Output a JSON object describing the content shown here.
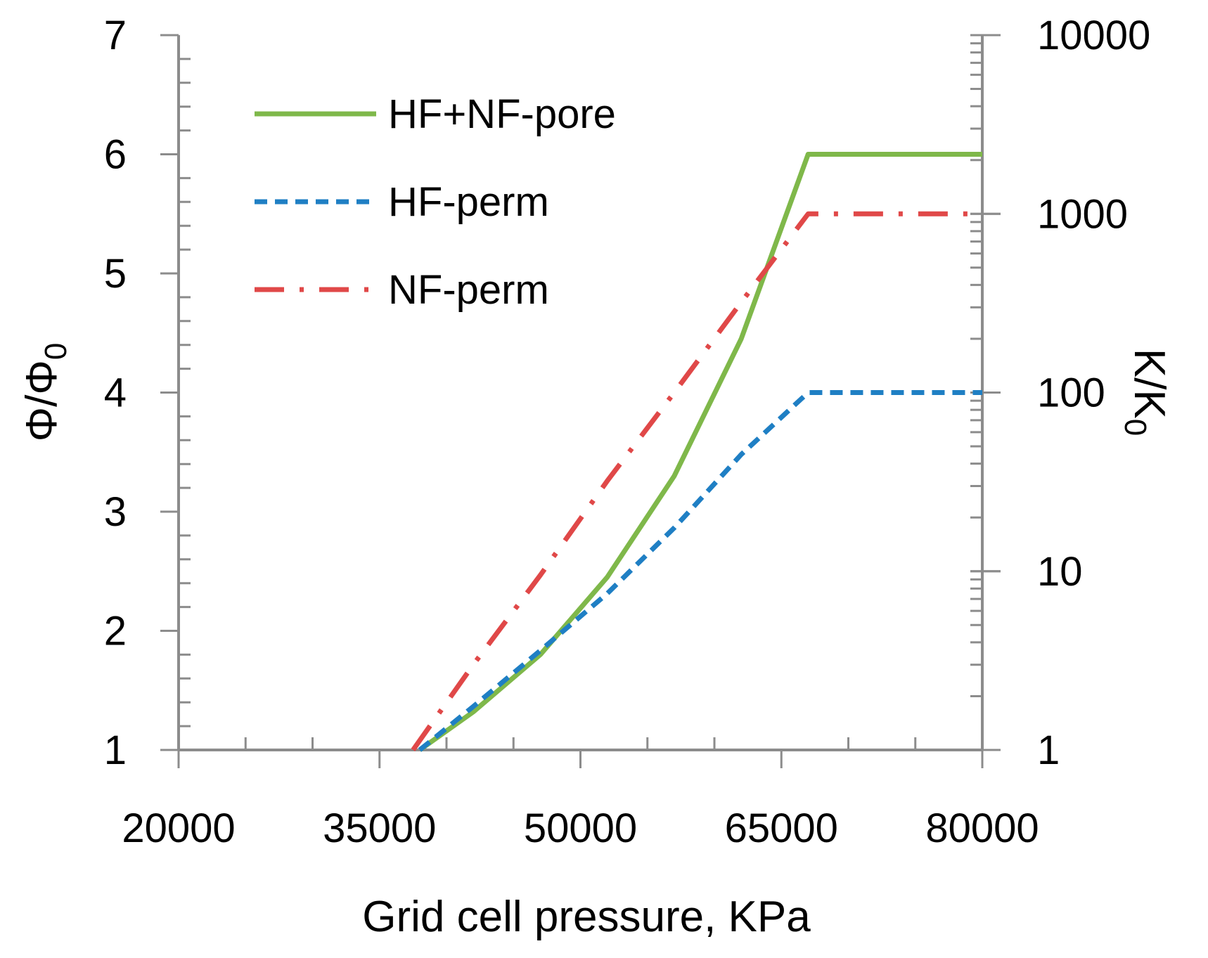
{
  "chart_data": {
    "type": "line",
    "x": [
      20000,
      37500,
      38500,
      42000,
      47000,
      52000,
      57000,
      62000,
      67000,
      70000,
      80000
    ],
    "xlabel": "Grid cell pressure, KPa",
    "xlim": [
      20000,
      80000
    ],
    "x_ticks": [
      "20000",
      "35000",
      "50000",
      "65000",
      "80000"
    ],
    "x_tick_values": [
      20000,
      35000,
      50000,
      65000,
      80000
    ],
    "ylabel_left": {
      "base": "Φ/Φ",
      "sub": "0"
    },
    "ylim_left": [
      1,
      7
    ],
    "y_ticks_left": [
      "1",
      "2",
      "3",
      "4",
      "5",
      "6",
      "7"
    ],
    "ylabel_right": {
      "base": "K/K",
      "sub": "0"
    },
    "ylim_right": [
      1,
      10000
    ],
    "y_scale_right": "log",
    "y_ticks_right": [
      "1",
      "10",
      "100",
      "1000",
      "10000"
    ],
    "legend_position": "top-left",
    "series": [
      {
        "name": "HF+NF-pore",
        "axis": "left",
        "color": "#7fb84a",
        "style": "solid",
        "x": [
          38000,
          42000,
          47000,
          52000,
          57000,
          62000,
          67000,
          80000
        ],
        "values": [
          1.0,
          1.32,
          1.8,
          2.45,
          3.3,
          4.45,
          6.0,
          6.0
        ]
      },
      {
        "name": "HF-perm",
        "axis": "right",
        "color": "#1f7fc4",
        "style": "dash",
        "x": [
          38000,
          42000,
          47000,
          52000,
          57000,
          62000,
          67000,
          80000
        ],
        "values": [
          1.0,
          1.75,
          3.6,
          7.5,
          17.5,
          45,
          100,
          100
        ]
      },
      {
        "name": "NF-perm",
        "axis": "right",
        "color": "#e04848",
        "style": "dashdot",
        "x": [
          37500,
          42000,
          47000,
          52000,
          57000,
          62000,
          67000,
          80000
        ],
        "values": [
          1.0,
          3.0,
          9.5,
          32,
          100,
          320,
          1000,
          1000
        ]
      }
    ]
  }
}
